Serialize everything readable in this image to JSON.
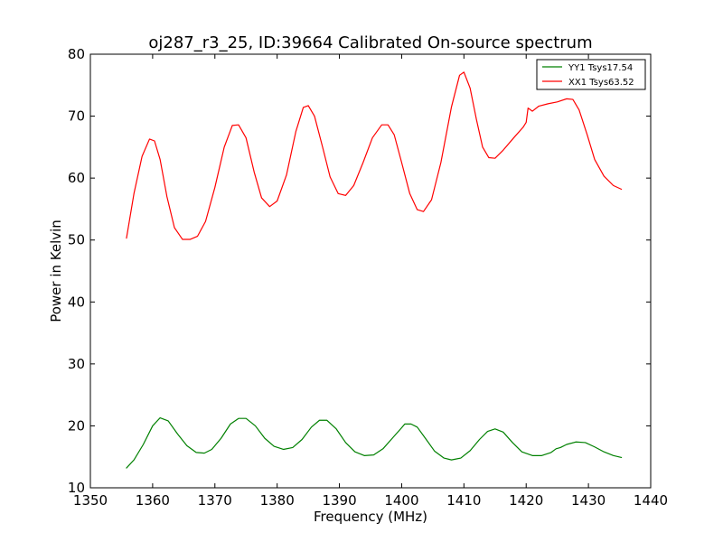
{
  "chart_data": {
    "type": "line",
    "title": "oj287_r3_25, ID:39664 Calibrated On-source spectrum",
    "xlabel": "Frequency (MHz)",
    "ylabel": "Power in Kelvin",
    "xlim": [
      1350,
      1440
    ],
    "ylim": [
      10,
      80
    ],
    "xticks": [
      "1350",
      "1360",
      "1370",
      "1380",
      "1390",
      "1400",
      "1410",
      "1420",
      "1430",
      "1440"
    ],
    "yticks": [
      "10",
      "20",
      "30",
      "40",
      "50",
      "60",
      "70",
      "80"
    ],
    "grid": false,
    "legend_position": "top-right",
    "series": [
      {
        "name": "YY1 Tsys17.54",
        "color": "#008000",
        "points": [
          [
            1355.8,
            13.2
          ],
          [
            1357.0,
            14.5
          ],
          [
            1358.5,
            17.0
          ],
          [
            1360.0,
            20.0
          ],
          [
            1361.2,
            21.3
          ],
          [
            1362.5,
            20.8
          ],
          [
            1364.0,
            18.7
          ],
          [
            1365.5,
            16.8
          ],
          [
            1367.0,
            15.7
          ],
          [
            1368.3,
            15.6
          ],
          [
            1369.5,
            16.2
          ],
          [
            1371.0,
            18.0
          ],
          [
            1372.5,
            20.3
          ],
          [
            1373.8,
            21.2
          ],
          [
            1375.0,
            21.2
          ],
          [
            1376.5,
            20.0
          ],
          [
            1378.0,
            18.0
          ],
          [
            1379.5,
            16.7
          ],
          [
            1381.0,
            16.2
          ],
          [
            1382.5,
            16.5
          ],
          [
            1384.0,
            17.8
          ],
          [
            1385.5,
            19.8
          ],
          [
            1386.8,
            20.9
          ],
          [
            1388.0,
            20.9
          ],
          [
            1389.5,
            19.5
          ],
          [
            1391.0,
            17.3
          ],
          [
            1392.5,
            15.8
          ],
          [
            1394.0,
            15.2
          ],
          [
            1395.5,
            15.3
          ],
          [
            1397.0,
            16.3
          ],
          [
            1398.5,
            18.0
          ],
          [
            1400.0,
            19.7
          ],
          [
            1400.5,
            20.3
          ],
          [
            1401.5,
            20.3
          ],
          [
            1402.5,
            19.8
          ],
          [
            1403.8,
            18.0
          ],
          [
            1405.3,
            15.9
          ],
          [
            1406.8,
            14.8
          ],
          [
            1408.0,
            14.5
          ],
          [
            1409.5,
            14.8
          ],
          [
            1411.0,
            16.0
          ],
          [
            1412.5,
            17.8
          ],
          [
            1413.8,
            19.1
          ],
          [
            1415.0,
            19.5
          ],
          [
            1416.3,
            19.0
          ],
          [
            1417.8,
            17.3
          ],
          [
            1419.3,
            15.8
          ],
          [
            1421.0,
            15.2
          ],
          [
            1422.5,
            15.2
          ],
          [
            1424.0,
            15.7
          ],
          [
            1424.8,
            16.3
          ],
          [
            1425.5,
            16.5
          ],
          [
            1426.5,
            17.0
          ],
          [
            1428.0,
            17.4
          ],
          [
            1429.5,
            17.3
          ],
          [
            1431.0,
            16.6
          ],
          [
            1432.5,
            15.8
          ],
          [
            1434.0,
            15.2
          ],
          [
            1435.3,
            14.9
          ]
        ]
      },
      {
        "name": "XX1 Tsys63.52",
        "color": "#ff0000",
        "points": [
          [
            1355.8,
            50.3
          ],
          [
            1357.0,
            57.5
          ],
          [
            1358.3,
            63.5
          ],
          [
            1359.5,
            66.3
          ],
          [
            1360.3,
            66.0
          ],
          [
            1361.2,
            63.0
          ],
          [
            1362.3,
            57.0
          ],
          [
            1363.5,
            52.0
          ],
          [
            1364.8,
            50.1
          ],
          [
            1366.0,
            50.1
          ],
          [
            1367.2,
            50.6
          ],
          [
            1368.5,
            53.0
          ],
          [
            1370.0,
            58.5
          ],
          [
            1371.5,
            65.0
          ],
          [
            1372.8,
            68.5
          ],
          [
            1373.8,
            68.6
          ],
          [
            1375.0,
            66.5
          ],
          [
            1376.3,
            61.0
          ],
          [
            1377.5,
            56.8
          ],
          [
            1378.8,
            55.4
          ],
          [
            1380.0,
            56.3
          ],
          [
            1381.5,
            60.5
          ],
          [
            1383.0,
            67.5
          ],
          [
            1384.2,
            71.4
          ],
          [
            1385.0,
            71.7
          ],
          [
            1386.0,
            70.0
          ],
          [
            1387.3,
            65.0
          ],
          [
            1388.5,
            60.2
          ],
          [
            1389.8,
            57.5
          ],
          [
            1391.0,
            57.2
          ],
          [
            1392.3,
            58.8
          ],
          [
            1393.8,
            62.5
          ],
          [
            1395.3,
            66.5
          ],
          [
            1396.8,
            68.6
          ],
          [
            1397.8,
            68.6
          ],
          [
            1398.8,
            67.0
          ],
          [
            1400.0,
            62.5
          ],
          [
            1401.3,
            57.5
          ],
          [
            1402.5,
            54.9
          ],
          [
            1403.5,
            54.6
          ],
          [
            1404.8,
            56.5
          ],
          [
            1406.3,
            62.5
          ],
          [
            1408.0,
            71.5
          ],
          [
            1409.3,
            76.6
          ],
          [
            1410.0,
            77.1
          ],
          [
            1411.0,
            74.5
          ],
          [
            1412.0,
            69.5
          ],
          [
            1413.0,
            65.0
          ],
          [
            1414.0,
            63.3
          ],
          [
            1415.0,
            63.2
          ],
          [
            1416.3,
            64.5
          ],
          [
            1418.0,
            66.5
          ],
          [
            1419.5,
            68.2
          ],
          [
            1420.0,
            69.0
          ],
          [
            1420.3,
            71.3
          ],
          [
            1421.0,
            70.8
          ],
          [
            1422.0,
            71.6
          ],
          [
            1423.5,
            72.0
          ],
          [
            1425.0,
            72.3
          ],
          [
            1426.5,
            72.8
          ],
          [
            1427.5,
            72.7
          ],
          [
            1428.5,
            71.0
          ],
          [
            1429.8,
            67.0
          ],
          [
            1431.0,
            63.0
          ],
          [
            1432.5,
            60.3
          ],
          [
            1434.0,
            58.8
          ],
          [
            1435.3,
            58.2
          ]
        ]
      }
    ]
  }
}
